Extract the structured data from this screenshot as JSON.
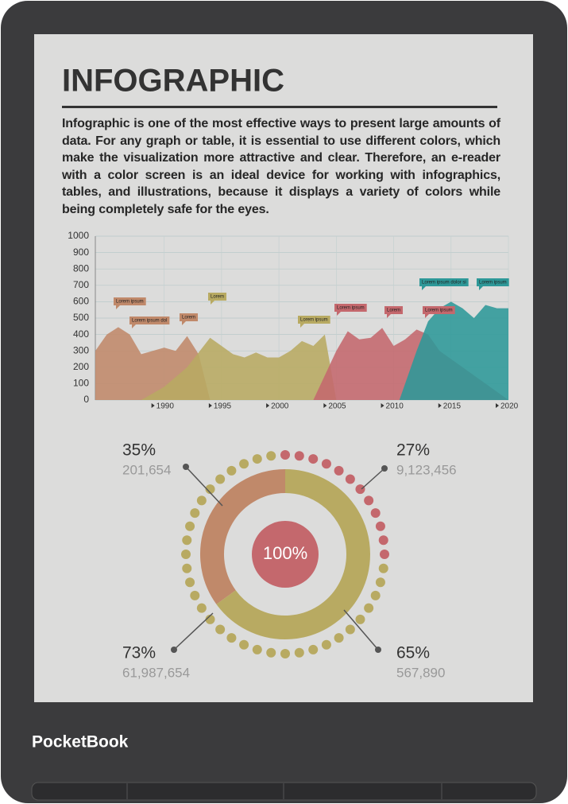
{
  "brand": "PocketBook",
  "title": "INFOGRAPHIC",
  "paragraph": "Infographic is one of the most effective ways to present large amounts of data. For any graph or table, it is essential to use different colors, which make the visualization more attractive and clear. Therefore, an e-reader with a color screen is an ideal device for working with infographics, tables, and illustrations, because it displays a variety of colors while being completely safe for the eyes.",
  "chart_data": [
    {
      "type": "area",
      "xlim": [
        1984,
        2020
      ],
      "ylim": [
        0,
        1000
      ],
      "xticks": [
        1990,
        1995,
        2000,
        2005,
        2010,
        2015,
        2020
      ],
      "yticks": [
        0,
        100,
        200,
        300,
        400,
        500,
        600,
        700,
        800,
        900,
        1000
      ],
      "grid": true,
      "series": [
        {
          "color": "#c0896a",
          "x": [
            1984,
            1985,
            1986,
            1987,
            1988,
            1989,
            1990,
            1991,
            1992,
            1993,
            1994
          ],
          "values": [
            300,
            400,
            445,
            400,
            280,
            300,
            320,
            300,
            390,
            280,
            0
          ]
        },
        {
          "color": "#b8aa62",
          "x": [
            1988,
            1990,
            1992,
            1994,
            1995,
            1996,
            1997,
            1998,
            1999,
            2000,
            2001,
            2002,
            2003,
            2004,
            2005
          ],
          "values": [
            0,
            80,
            200,
            380,
            330,
            280,
            260,
            290,
            260,
            260,
            300,
            360,
            330,
            400,
            0
          ]
        },
        {
          "color": "#c4686d",
          "x": [
            2003,
            2005,
            2006,
            2007,
            2008,
            2009,
            2010,
            2011,
            2012,
            2013,
            2014,
            2016,
            2018,
            2020
          ],
          "values": [
            0,
            300,
            420,
            370,
            380,
            440,
            330,
            370,
            430,
            400,
            300,
            200,
            100,
            0
          ]
        },
        {
          "color": "#2e9898",
          "x": [
            2010.5,
            2012,
            2013,
            2014,
            2015,
            2016,
            2017,
            2018,
            2019,
            2020
          ],
          "values": [
            0,
            300,
            480,
            560,
            600,
            560,
            500,
            580,
            560,
            560
          ]
        }
      ],
      "annotations": [
        "Lorem ipsum",
        "Lorem ipsum dol",
        "Lorem",
        "Lorem",
        "Lorem ipsum",
        "Lorem ipsum",
        "Lorem",
        "Lorem ipsum",
        "Lorem ipsum dolor si",
        "Lorem ipsum"
      ]
    },
    {
      "type": "donut",
      "center_label": "100%",
      "values": [
        35,
        65
      ],
      "value_labels": [
        "35%",
        "65%"
      ],
      "details": [
        "201,654",
        "567,890"
      ],
      "colors": [
        "#c0896a",
        "#b8aa62"
      ],
      "dot_values": [
        27,
        73
      ],
      "dot_value_labels": [
        "27%",
        "73%"
      ],
      "dot_details": [
        "9,123,456",
        "61,987,654"
      ],
      "dot_colors": [
        "#c4686d",
        "#b8aa62"
      ]
    }
  ]
}
